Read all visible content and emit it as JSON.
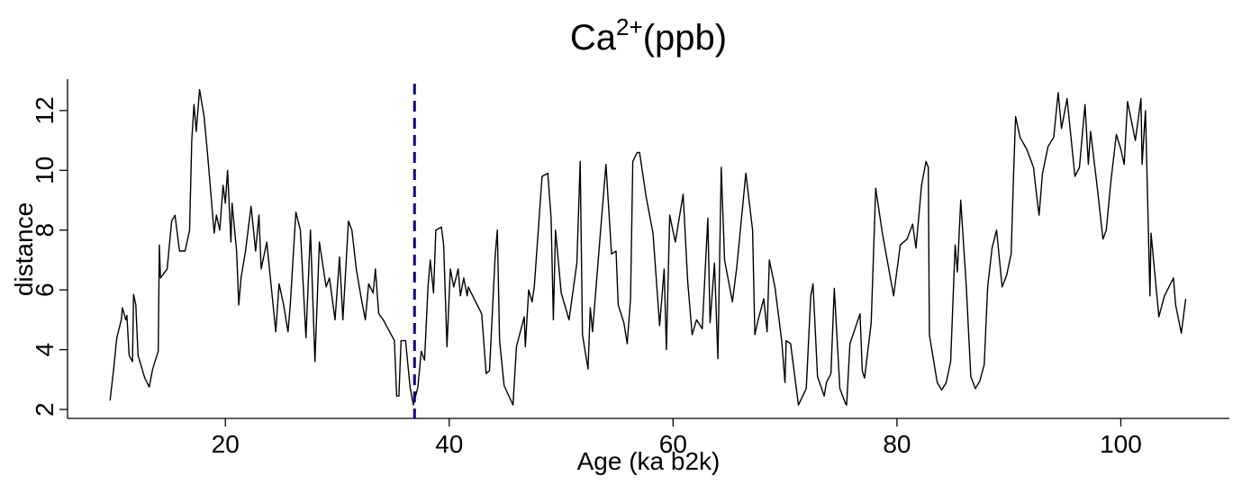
{
  "chart_data": {
    "type": "line",
    "title": "Ca",
    "title_superscript": "2+",
    "title_suffix": "(ppb)",
    "xlabel": "Age (ka b2k)",
    "ylabel": "distance",
    "xlim": [
      5.9,
      109.7
    ],
    "ylim": [
      1.7,
      13.05
    ],
    "xticks": [
      20,
      40,
      60,
      80,
      100
    ],
    "yticks": [
      2,
      4,
      6,
      8,
      10,
      12
    ],
    "grid": false,
    "series_color": "#000000",
    "marker_line": {
      "x": 36.9,
      "color": "#00008B",
      "style": "dashed"
    },
    "series": [
      {
        "name": "Ca2+",
        "x": [
          9.7,
          10.0,
          10.3,
          10.7,
          10.8,
          11.1,
          11.2,
          11.4,
          11.7,
          11.8,
          12.0,
          12.2,
          12.8,
          13.2,
          13.5,
          14.0,
          14.1,
          14.2,
          14.8,
          15.2,
          15.5,
          15.9,
          16.4,
          16.8,
          17.0,
          17.2,
          17.4,
          17.7,
          18.1,
          18.4,
          19.0,
          19.2,
          19.5,
          19.8,
          20.0,
          20.2,
          20.5,
          20.6,
          21.0,
          21.2,
          21.4,
          21.8,
          22.1,
          22.3,
          22.7,
          23.0,
          23.2,
          23.7,
          24.1,
          24.5,
          24.8,
          25.2,
          25.6,
          25.8,
          26.3,
          26.7,
          27.2,
          27.6,
          28.0,
          28.4,
          29.0,
          29.3,
          29.8,
          30.2,
          30.5,
          31.0,
          31.3,
          31.7,
          32.1,
          32.5,
          32.8,
          33.2,
          33.4,
          33.7,
          34.1,
          35.1,
          35.3,
          35.5,
          35.7,
          36.1,
          36.5,
          36.8,
          37.2,
          37.5,
          37.8,
          38.1,
          38.3,
          38.6,
          38.8,
          39.3,
          39.5,
          39.8,
          40.1,
          40.4,
          40.8,
          41.0,
          41.3,
          41.6,
          41.7,
          42.9,
          43.3,
          43.6,
          44.1,
          44.3,
          44.5,
          44.9,
          45.7,
          46.0,
          46.7,
          46.8,
          47.1,
          47.4,
          47.6,
          48.2,
          48.3,
          48.8,
          49.1,
          49.3,
          49.5,
          50.0,
          50.7,
          51.4,
          51.7,
          51.9,
          52.4,
          52.6,
          52.8,
          53.5,
          54.0,
          54.5,
          54.9,
          55.1,
          55.6,
          55.9,
          56.2,
          56.4,
          56.8,
          57.0,
          57.6,
          58.2,
          58.8,
          59.2,
          59.4,
          59.7,
          60.2,
          60.9,
          61.3,
          61.7,
          62.1,
          62.6,
          62.9,
          63.1,
          63.3,
          63.7,
          64.0,
          64.3,
          64.6,
          65.3,
          65.7,
          66.5,
          67.1,
          67.3,
          67.6,
          68.1,
          68.4,
          68.6,
          69.1,
          69.7,
          70.0,
          70.1,
          70.5,
          71.2,
          71.9,
          72.3,
          72.5,
          72.9,
          73.5,
          73.7,
          74.1,
          74.4,
          74.9,
          75.4,
          75.5,
          75.8,
          76.7,
          76.9,
          77.1,
          77.7,
          78.1,
          78.7,
          79.7,
          80.3,
          80.9,
          81.4,
          81.7,
          82.2,
          82.6,
          82.8,
          82.9,
          83.6,
          84.0,
          84.4,
          84.8,
          85.2,
          85.4,
          85.7,
          86.2,
          86.6,
          87.0,
          87.4,
          87.8,
          88.1,
          88.5,
          88.9,
          89.4,
          89.8,
          90.2,
          90.4,
          90.6,
          91.0,
          91.6,
          92.2,
          92.5,
          92.7,
          93.0,
          93.5,
          94.0,
          94.4,
          94.7,
          95.2,
          95.9,
          96.3,
          96.8,
          97.1,
          97.3,
          97.9,
          98.4,
          98.7,
          99.1,
          99.6,
          100.0,
          100.3,
          100.6,
          101.3,
          101.8,
          101.9,
          102.2,
          102.6,
          102.7,
          103.4,
          103.9,
          104.7,
          104.9,
          105.4,
          105.8
        ],
        "y": [
          2.3,
          3.3,
          4.4,
          5.0,
          5.4,
          5.0,
          5.15,
          3.8,
          3.6,
          5.85,
          5.5,
          3.8,
          3.05,
          2.75,
          3.35,
          3.95,
          7.5,
          6.4,
          6.7,
          8.3,
          8.5,
          7.3,
          7.3,
          8.0,
          11.0,
          12.2,
          11.3,
          12.7,
          11.8,
          10.6,
          7.9,
          8.5,
          8.0,
          9.5,
          8.9,
          10.0,
          7.6,
          8.9,
          7.3,
          5.5,
          6.4,
          7.3,
          8.2,
          8.8,
          7.3,
          8.5,
          6.7,
          7.6,
          6.1,
          4.6,
          6.2,
          5.5,
          4.6,
          5.5,
          8.6,
          8.0,
          4.4,
          8.0,
          3.6,
          7.6,
          6.1,
          6.4,
          5.0,
          7.1,
          5.0,
          8.3,
          8.0,
          6.7,
          5.8,
          5.0,
          6.2,
          5.9,
          6.7,
          5.2,
          5.0,
          4.3,
          2.45,
          2.45,
          4.3,
          4.3,
          2.75,
          2.15,
          2.75,
          3.95,
          3.65,
          6.1,
          7.0,
          5.9,
          8.0,
          8.1,
          7.5,
          4.1,
          6.7,
          6.1,
          6.7,
          5.8,
          6.4,
          5.8,
          6.1,
          5.2,
          3.2,
          3.3,
          7.1,
          8.0,
          4.3,
          2.8,
          2.15,
          4.1,
          5.1,
          4.1,
          6.0,
          5.6,
          6.1,
          9.3,
          9.8,
          9.9,
          8.4,
          5.0,
          8.0,
          5.9,
          5.0,
          6.9,
          10.3,
          4.5,
          3.35,
          5.4,
          4.6,
          7.9,
          10.2,
          7.2,
          7.3,
          5.5,
          4.9,
          4.2,
          5.7,
          10.3,
          10.6,
          10.6,
          9.1,
          7.9,
          4.8,
          6.7,
          4.0,
          8.5,
          7.6,
          9.2,
          6.3,
          4.5,
          5.0,
          4.7,
          6.9,
          8.4,
          4.9,
          6.9,
          3.7,
          10.1,
          7.0,
          5.6,
          6.8,
          9.9,
          8.0,
          4.5,
          5.0,
          5.7,
          4.6,
          7.0,
          6.1,
          4.3,
          2.9,
          4.3,
          4.2,
          2.15,
          2.7,
          5.8,
          6.2,
          3.1,
          2.45,
          2.9,
          3.2,
          6.05,
          2.7,
          2.2,
          2.15,
          4.2,
          5.2,
          3.3,
          3.05,
          4.9,
          9.4,
          7.9,
          5.8,
          7.5,
          7.7,
          8.2,
          7.4,
          9.5,
          10.3,
          10.1,
          4.5,
          2.9,
          2.65,
          2.9,
          3.6,
          7.5,
          6.6,
          9.0,
          6.1,
          3.1,
          2.7,
          2.95,
          3.5,
          6.1,
          7.4,
          8.0,
          6.1,
          6.5,
          7.2,
          9.6,
          11.8,
          11.1,
          10.7,
          10.1,
          9.1,
          8.5,
          9.9,
          10.8,
          11.1,
          12.6,
          11.4,
          12.4,
          9.8,
          10.1,
          12.2,
          10.2,
          11.3,
          9.4,
          7.7,
          8.0,
          9.6,
          11.2,
          10.7,
          10.2,
          12.3,
          11.0,
          12.4,
          10.2,
          12.0,
          5.8,
          7.9,
          5.1,
          5.8,
          6.4,
          5.5,
          4.55,
          5.7
        ]
      }
    ]
  }
}
